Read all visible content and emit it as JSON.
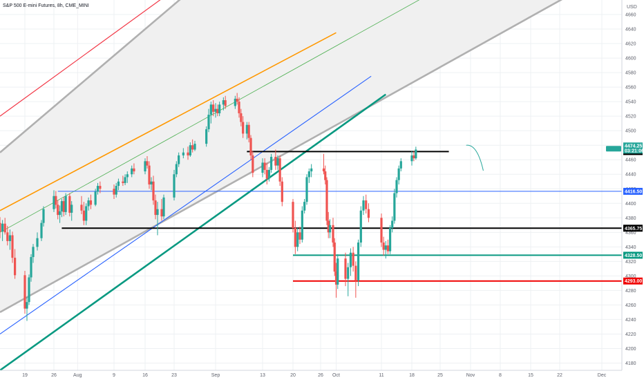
{
  "chart_data": {
    "type": "candlestick",
    "title": "S&P 500 E-mini Futures, 8h, CME_MINI",
    "currency": "USD",
    "ylim": [
      4170,
      4680
    ],
    "y_ticks": [
      4180,
      4200,
      4220,
      4240,
      4260,
      4280,
      4300,
      4320,
      4340,
      4360,
      4380,
      4400,
      4420,
      4440,
      4460,
      4480,
      4500,
      4520,
      4540,
      4560,
      4580,
      4600,
      4620,
      4640,
      4660
    ],
    "x_ticks": [
      "19",
      "26",
      "Aug",
      "9",
      "16",
      "23",
      "Sep",
      "13",
      "20",
      "26",
      "Oct",
      "11",
      "18",
      "25",
      "Nov",
      "8",
      "15",
      "22",
      "Dec"
    ],
    "grid": true,
    "colors": {
      "up": "#26a69a",
      "down": "#ef5350",
      "grid": "#eef0f3",
      "channel_fill": "#f0f0f0"
    },
    "price_levels": [
      {
        "label": "4471.25",
        "value": 4471.25,
        "color": "#000000",
        "from": "Sep 9",
        "to": "Oct 27"
      },
      {
        "label": "4416.50",
        "value": 4416.5,
        "color": "#2962ff",
        "from": "Jul 27",
        "to": "Dec"
      },
      {
        "label": "4365.75",
        "value": 4365.75,
        "color": "#000000",
        "from": "Jul 28",
        "to": "Dec"
      },
      {
        "label": "4328.50",
        "value": 4328.5,
        "color": "#089981",
        "from": "Sep 20",
        "to": "Dec"
      },
      {
        "label": "4293.00",
        "value": 4293.0,
        "color": "#f00000",
        "from": "Sep 20",
        "to": "Dec"
      }
    ],
    "last_price_tag": {
      "label": "4474.25",
      "sub": "03:21:06",
      "value": 4474.25,
      "color": "#26a69a"
    },
    "trend_lines": [
      {
        "name": "red",
        "color": "#f23645",
        "from": [
          "Jul 14",
          4520
        ],
        "to": [
          "Aug 22",
          4690
        ]
      },
      {
        "name": "orange",
        "color": "#ff9800",
        "from": [
          "Jul 14",
          4390
        ],
        "to": [
          "Oct 1",
          4635
        ]
      },
      {
        "name": "thin-green",
        "color": "#4caf50",
        "from": [
          "Jul 14",
          4360
        ],
        "to": [
          "Oct 23",
          4690
        ]
      },
      {
        "name": "channel-upper",
        "color": "#b0b0b0",
        "from": [
          "Jul 14",
          4470
        ],
        "to": [
          "Aug 26",
          4690
        ]
      },
      {
        "name": "channel-lower",
        "color": "#b0b0b0",
        "from": [
          "Jul 14",
          4250
        ],
        "to": [
          "Nov 25",
          4690
        ]
      },
      {
        "name": "blue",
        "color": "#2962ff",
        "from": [
          "Jul 14",
          4220
        ],
        "to": [
          "Oct 9",
          4575
        ]
      },
      {
        "name": "thick-green",
        "color": "#089981",
        "from": [
          "Jul 14",
          4170
        ],
        "to": [
          "Oct 12",
          4550
        ]
      }
    ],
    "projection_arrow": {
      "from": [
        "Oct 31",
        4480
      ],
      "to": [
        "Nov 4",
        4445
      ]
    },
    "candles": [
      {
        "date": "Jul 14",
        "o": 4373,
        "h": 4381,
        "l": 4352,
        "c": 4361
      },
      {
        "date": "Jul 14b",
        "o": 4361,
        "h": 4377,
        "l": 4348,
        "c": 4372
      },
      {
        "date": "Jul 15",
        "o": 4372,
        "h": 4380,
        "l": 4357,
        "c": 4360
      },
      {
        "date": "Jul 15b",
        "o": 4360,
        "h": 4369,
        "l": 4342,
        "c": 4348
      },
      {
        "date": "Jul 16",
        "o": 4348,
        "h": 4364,
        "l": 4336,
        "c": 4356
      },
      {
        "date": "Jul 16b",
        "o": 4356,
        "h": 4361,
        "l": 4318,
        "c": 4325
      },
      {
        "date": "Jul 17",
        "o": 4325,
        "h": 4337,
        "l": 4296,
        "c": 4301
      },
      {
        "date": "Jul 19",
        "o": 4301,
        "h": 4307,
        "l": 4248,
        "c": 4255
      },
      {
        "date": "Jul 19b",
        "o": 4255,
        "h": 4271,
        "l": 4238,
        "c": 4264
      },
      {
        "date": "Jul 20",
        "o": 4264,
        "h": 4302,
        "l": 4260,
        "c": 4298
      },
      {
        "date": "Jul 20b",
        "o": 4298,
        "h": 4330,
        "l": 4292,
        "c": 4326
      },
      {
        "date": "Jul 21",
        "o": 4326,
        "h": 4344,
        "l": 4318,
        "c": 4340
      },
      {
        "date": "Jul 22",
        "o": 4340,
        "h": 4360,
        "l": 4335,
        "c": 4352
      },
      {
        "date": "Jul 23",
        "o": 4352,
        "h": 4377,
        "l": 4348,
        "c": 4373
      },
      {
        "date": "Jul 23b",
        "o": 4373,
        "h": 4396,
        "l": 4368,
        "c": 4392
      },
      {
        "date": "Jul 26",
        "o": 4392,
        "h": 4418,
        "l": 4388,
        "c": 4410
      },
      {
        "date": "Jul 26b",
        "o": 4410,
        "h": 4417,
        "l": 4393,
        "c": 4398
      },
      {
        "date": "Jul 27",
        "o": 4398,
        "h": 4404,
        "l": 4378,
        "c": 4384
      },
      {
        "date": "Jul 27b",
        "o": 4384,
        "h": 4397,
        "l": 4373,
        "c": 4389
      },
      {
        "date": "Jul 28",
        "o": 4389,
        "h": 4406,
        "l": 4381,
        "c": 4403
      },
      {
        "date": "Jul 28b",
        "o": 4403,
        "h": 4409,
        "l": 4382,
        "c": 4388
      },
      {
        "date": "Jul 29",
        "o": 4388,
        "h": 4414,
        "l": 4384,
        "c": 4410
      },
      {
        "date": "Jul 30",
        "o": 4410,
        "h": 4414,
        "l": 4382,
        "c": 4387
      },
      {
        "date": "Jul 30b",
        "o": 4387,
        "h": 4403,
        "l": 4376,
        "c": 4398
      },
      {
        "date": "Aug 2",
        "o": 4398,
        "h": 4410,
        "l": 4385,
        "c": 4390
      },
      {
        "date": "Aug 2b",
        "o": 4390,
        "h": 4402,
        "l": 4370,
        "c": 4376
      },
      {
        "date": "Aug 3",
        "o": 4376,
        "h": 4400,
        "l": 4370,
        "c": 4396
      },
      {
        "date": "Aug 3b",
        "o": 4396,
        "h": 4408,
        "l": 4390,
        "c": 4404
      },
      {
        "date": "Aug 4",
        "o": 4404,
        "h": 4412,
        "l": 4392,
        "c": 4398
      },
      {
        "date": "Aug 5",
        "o": 4398,
        "h": 4420,
        "l": 4396,
        "c": 4416
      },
      {
        "date": "Aug 5b",
        "o": 4416,
        "h": 4428,
        "l": 4412,
        "c": 4424
      },
      {
        "date": "Aug 6",
        "o": 4424,
        "h": 4430,
        "l": 4414,
        "c": 4420
      },
      {
        "date": "Aug 9",
        "o": 4420,
        "h": 4426,
        "l": 4406,
        "c": 4412
      },
      {
        "date": "Aug 9b",
        "o": 4412,
        "h": 4428,
        "l": 4408,
        "c": 4424
      },
      {
        "date": "Aug 10",
        "o": 4424,
        "h": 4434,
        "l": 4418,
        "c": 4430
      },
      {
        "date": "Aug 11",
        "o": 4430,
        "h": 4438,
        "l": 4424,
        "c": 4428
      },
      {
        "date": "Aug 11b",
        "o": 4428,
        "h": 4440,
        "l": 4425,
        "c": 4436
      },
      {
        "date": "Aug 12",
        "o": 4436,
        "h": 4444,
        "l": 4428,
        "c": 4440
      },
      {
        "date": "Aug 13",
        "o": 4440,
        "h": 4452,
        "l": 4436,
        "c": 4448
      },
      {
        "date": "Aug 13b",
        "o": 4448,
        "h": 4455,
        "l": 4440,
        "c": 4444
      },
      {
        "date": "Aug 16",
        "o": 4444,
        "h": 4462,
        "l": 4440,
        "c": 4458
      },
      {
        "date": "Aug 16b",
        "o": 4458,
        "h": 4465,
        "l": 4448,
        "c": 4452
      },
      {
        "date": "Aug 17",
        "o": 4452,
        "h": 4458,
        "l": 4420,
        "c": 4426
      },
      {
        "date": "Aug 17b",
        "o": 4426,
        "h": 4436,
        "l": 4418,
        "c": 4430
      },
      {
        "date": "Aug 18",
        "o": 4430,
        "h": 4438,
        "l": 4398,
        "c": 4404
      },
      {
        "date": "Aug 18b",
        "o": 4404,
        "h": 4412,
        "l": 4378,
        "c": 4384
      },
      {
        "date": "Aug 19",
        "o": 4384,
        "h": 4402,
        "l": 4356,
        "c": 4392
      },
      {
        "date": "Aug 20",
        "o": 4392,
        "h": 4406,
        "l": 4376,
        "c": 4382
      },
      {
        "date": "Aug 20b",
        "o": 4382,
        "h": 4412,
        "l": 4378,
        "c": 4408
      },
      {
        "date": "Aug 23",
        "o": 4408,
        "h": 4446,
        "l": 4404,
        "c": 4440
      },
      {
        "date": "Aug 23b",
        "o": 4440,
        "h": 4458,
        "l": 4436,
        "c": 4454
      },
      {
        "date": "Aug 24",
        "o": 4454,
        "h": 4470,
        "l": 4450,
        "c": 4466
      },
      {
        "date": "Aug 25",
        "o": 4466,
        "h": 4476,
        "l": 4462,
        "c": 4470
      },
      {
        "date": "Aug 26",
        "o": 4470,
        "h": 4478,
        "l": 4460,
        "c": 4466
      },
      {
        "date": "Aug 26b",
        "o": 4466,
        "h": 4484,
        "l": 4464,
        "c": 4480
      },
      {
        "date": "Aug 27",
        "o": 4480,
        "h": 4488,
        "l": 4470,
        "c": 4474
      },
      {
        "date": "Aug 27b",
        "o": 4474,
        "h": 4486,
        "l": 4472,
        "c": 4482
      },
      {
        "date": "Aug 30",
        "o": 4482,
        "h": 4506,
        "l": 4478,
        "c": 4502
      },
      {
        "date": "Aug 30b",
        "o": 4502,
        "h": 4530,
        "l": 4498,
        "c": 4522
      },
      {
        "date": "Aug 31",
        "o": 4522,
        "h": 4540,
        "l": 4510,
        "c": 4536
      },
      {
        "date": "Aug 31b",
        "o": 4536,
        "h": 4542,
        "l": 4520,
        "c": 4526
      },
      {
        "date": "Sep 1",
        "o": 4526,
        "h": 4538,
        "l": 4518,
        "c": 4530
      },
      {
        "date": "Sep 1b",
        "o": 4530,
        "h": 4536,
        "l": 4520,
        "c": 4524
      },
      {
        "date": "Sep 2",
        "o": 4524,
        "h": 4540,
        "l": 4520,
        "c": 4536
      },
      {
        "date": "Sep 3",
        "o": 4536,
        "h": 4546,
        "l": 4528,
        "c": 4542
      },
      {
        "date": "Sep 3b",
        "o": 4542,
        "h": 4548,
        "l": 4530,
        "c": 4534
      },
      {
        "date": "Sep 6",
        "o": 4534,
        "h": 4548,
        "l": 4530,
        "c": 4544
      },
      {
        "date": "Sep 6b",
        "o": 4544,
        "h": 4552,
        "l": 4536,
        "c": 4540
      },
      {
        "date": "Sep 7",
        "o": 4540,
        "h": 4546,
        "l": 4518,
        "c": 4524
      },
      {
        "date": "Sep 7b",
        "o": 4524,
        "h": 4530,
        "l": 4506,
        "c": 4512
      },
      {
        "date": "Sep 8",
        "o": 4512,
        "h": 4520,
        "l": 4490,
        "c": 4496
      },
      {
        "date": "Sep 9",
        "o": 4496,
        "h": 4512,
        "l": 4488,
        "c": 4508
      },
      {
        "date": "Sep 9b",
        "o": 4508,
        "h": 4512,
        "l": 4484,
        "c": 4490
      },
      {
        "date": "Sep 10",
        "o": 4490,
        "h": 4494,
        "l": 4460,
        "c": 4466
      },
      {
        "date": "Sep 10b",
        "o": 4466,
        "h": 4472,
        "l": 4436,
        "c": 4442
      },
      {
        "date": "Sep 13",
        "o": 4442,
        "h": 4462,
        "l": 4436,
        "c": 4456
      },
      {
        "date": "Sep 13b",
        "o": 4456,
        "h": 4462,
        "l": 4440,
        "c": 4446
      },
      {
        "date": "Sep 14",
        "o": 4446,
        "h": 4456,
        "l": 4426,
        "c": 4434
      },
      {
        "date": "Sep 14b",
        "o": 4434,
        "h": 4450,
        "l": 4430,
        "c": 4446
      },
      {
        "date": "Sep 15",
        "o": 4446,
        "h": 4468,
        "l": 4442,
        "c": 4464
      },
      {
        "date": "Sep 16",
        "o": 4464,
        "h": 4474,
        "l": 4446,
        "c": 4452
      },
      {
        "date": "Sep 16b",
        "o": 4452,
        "h": 4466,
        "l": 4446,
        "c": 4462
      },
      {
        "date": "Sep 17",
        "o": 4462,
        "h": 4466,
        "l": 4424,
        "c": 4430
      },
      {
        "date": "Sep 17b",
        "o": 4430,
        "h": 4436,
        "l": 4396,
        "c": 4402
      },
      {
        "date": "Sep 20",
        "o": 4402,
        "h": 4406,
        "l": 4360,
        "c": 4366
      },
      {
        "date": "Sep 20b",
        "o": 4366,
        "h": 4376,
        "l": 4330,
        "c": 4340
      },
      {
        "date": "Sep 21",
        "o": 4340,
        "h": 4366,
        "l": 4334,
        "c": 4360
      },
      {
        "date": "Sep 21b",
        "o": 4360,
        "h": 4368,
        "l": 4344,
        "c": 4350
      },
      {
        "date": "Sep 22",
        "o": 4350,
        "h": 4396,
        "l": 4346,
        "c": 4390
      },
      {
        "date": "Sep 22b",
        "o": 4390,
        "h": 4406,
        "l": 4386,
        "c": 4402
      },
      {
        "date": "Sep 23",
        "o": 4402,
        "h": 4440,
        "l": 4398,
        "c": 4436
      },
      {
        "date": "Sep 23b",
        "o": 4436,
        "h": 4448,
        "l": 4428,
        "c": 4444
      },
      {
        "date": "Sep 24",
        "o": 4444,
        "h": 4454,
        "l": 4436,
        "c": 4448
      },
      {
        "date": "Sep 27",
        "o": 4448,
        "h": 4468,
        "l": 4440,
        "c": 4444
      },
      {
        "date": "Sep 27b",
        "o": 4444,
        "h": 4452,
        "l": 4426,
        "c": 4432
      },
      {
        "date": "Sep 28",
        "o": 4432,
        "h": 4436,
        "l": 4370,
        "c": 4376
      },
      {
        "date": "Sep 28b",
        "o": 4376,
        "h": 4388,
        "l": 4352,
        "c": 4360
      },
      {
        "date": "Sep 29",
        "o": 4360,
        "h": 4378,
        "l": 4352,
        "c": 4370
      },
      {
        "date": "Sep 30",
        "o": 4370,
        "h": 4380,
        "l": 4340,
        "c": 4346
      },
      {
        "date": "Sep 30b",
        "o": 4346,
        "h": 4352,
        "l": 4300,
        "c": 4306
      },
      {
        "date": "Oct 1",
        "o": 4306,
        "h": 4318,
        "l": 4270,
        "c": 4288
      },
      {
        "date": "Oct 1b",
        "o": 4288,
        "h": 4330,
        "l": 4282,
        "c": 4324
      },
      {
        "date": "Oct 4",
        "o": 4324,
        "h": 4332,
        "l": 4286,
        "c": 4296
      },
      {
        "date": "Oct 4b",
        "o": 4296,
        "h": 4318,
        "l": 4272,
        "c": 4312
      },
      {
        "date": "Oct 5",
        "o": 4312,
        "h": 4338,
        "l": 4300,
        "c": 4332
      },
      {
        "date": "Oct 5b",
        "o": 4332,
        "h": 4340,
        "l": 4306,
        "c": 4314
      },
      {
        "date": "Oct 6",
        "o": 4314,
        "h": 4320,
        "l": 4270,
        "c": 4294
      },
      {
        "date": "Oct 6b",
        "o": 4294,
        "h": 4350,
        "l": 4286,
        "c": 4346
      },
      {
        "date": "Oct 7",
        "o": 4346,
        "h": 4396,
        "l": 4340,
        "c": 4390
      },
      {
        "date": "Oct 7b",
        "o": 4390,
        "h": 4410,
        "l": 4384,
        "c": 4404
      },
      {
        "date": "Oct 8",
        "o": 4404,
        "h": 4412,
        "l": 4386,
        "c": 4392
      },
      {
        "date": "Oct 8b",
        "o": 4392,
        "h": 4400,
        "l": 4374,
        "c": 4380
      },
      {
        "date": "Oct 11",
        "o": 4380,
        "h": 4386,
        "l": 4340,
        "c": 4346
      },
      {
        "date": "Oct 11b",
        "o": 4346,
        "h": 4354,
        "l": 4328,
        "c": 4336
      },
      {
        "date": "Oct 12",
        "o": 4336,
        "h": 4348,
        "l": 4324,
        "c": 4342
      },
      {
        "date": "Oct 12b",
        "o": 4342,
        "h": 4350,
        "l": 4330,
        "c": 4334
      },
      {
        "date": "Oct 13",
        "o": 4334,
        "h": 4370,
        "l": 4330,
        "c": 4366
      },
      {
        "date": "Oct 13b",
        "o": 4366,
        "h": 4382,
        "l": 4360,
        "c": 4376
      },
      {
        "date": "Oct 14",
        "o": 4376,
        "h": 4420,
        "l": 4372,
        "c": 4414
      },
      {
        "date": "Oct 14b",
        "o": 4414,
        "h": 4436,
        "l": 4408,
        "c": 4432
      },
      {
        "date": "Oct 15",
        "o": 4432,
        "h": 4452,
        "l": 4426,
        "c": 4448
      },
      {
        "date": "Oct 15b",
        "o": 4448,
        "h": 4462,
        "l": 4444,
        "c": 4458
      },
      {
        "date": "Oct 18",
        "o": 4458,
        "h": 4472,
        "l": 4452,
        "c": 4466
      },
      {
        "date": "Oct 18b",
        "o": 4466,
        "h": 4472,
        "l": 4458,
        "c": 4462
      },
      {
        "date": "Oct 19",
        "o": 4462,
        "h": 4478,
        "l": 4460,
        "c": 4474
      }
    ]
  }
}
